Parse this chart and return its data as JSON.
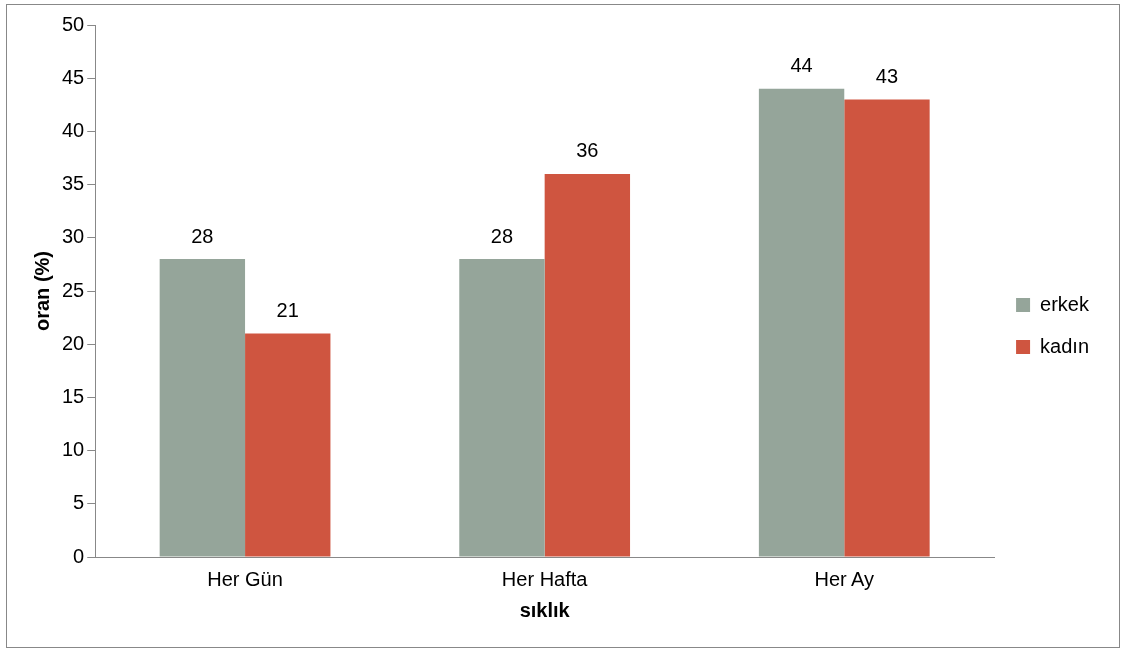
{
  "chart_data": {
    "type": "bar",
    "xlabel": "sıklık",
    "ylabel": "oran (%)",
    "categories": [
      "Her Gün",
      "Her Hafta",
      "Her Ay"
    ],
    "series": [
      {
        "name": "erkek",
        "color": "#95a59a",
        "values": [
          28,
          28,
          44
        ]
      },
      {
        "name": "kadın",
        "color": "#cf5540",
        "values": [
          21,
          36,
          43
        ]
      }
    ],
    "ylim": [
      0,
      50
    ],
    "yticks": [
      0,
      5,
      10,
      15,
      20,
      25,
      30,
      35,
      40,
      45,
      50
    ],
    "grid": false,
    "legend": "right",
    "data_labels": true
  }
}
